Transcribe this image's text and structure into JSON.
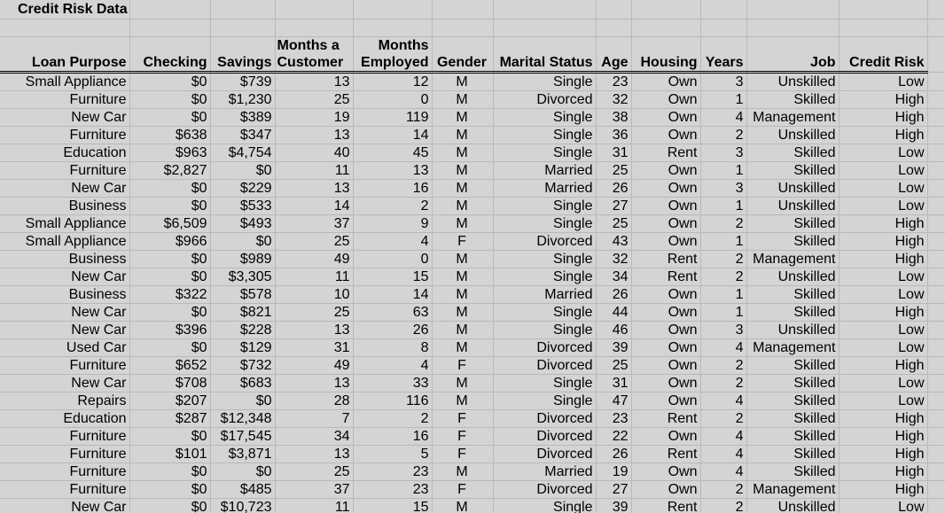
{
  "title": "Credit Risk Data",
  "table": {
    "header": [
      "Loan Purpose",
      "Checking",
      "Savings",
      "Months a Customer",
      "Months Employed",
      "Gender",
      "Marital Status",
      "Age",
      "Housing",
      "Years",
      "Job",
      "Credit Risk"
    ],
    "rows": [
      [
        "Small Appliance",
        "$0",
        "$739",
        "13",
        "12",
        "M",
        "Single",
        "23",
        "Own",
        "3",
        "Unskilled",
        "Low"
      ],
      [
        "Furniture",
        "$0",
        "$1,230",
        "25",
        "0",
        "M",
        "Divorced",
        "32",
        "Own",
        "1",
        "Skilled",
        "High"
      ],
      [
        "New Car",
        "$0",
        "$389",
        "19",
        "119",
        "M",
        "Single",
        "38",
        "Own",
        "4",
        "Management",
        "High"
      ],
      [
        "Furniture",
        "$638",
        "$347",
        "13",
        "14",
        "M",
        "Single",
        "36",
        "Own",
        "2",
        "Unskilled",
        "High"
      ],
      [
        "Education",
        "$963",
        "$4,754",
        "40",
        "45",
        "M",
        "Single",
        "31",
        "Rent",
        "3",
        "Skilled",
        "Low"
      ],
      [
        "Furniture",
        "$2,827",
        "$0",
        "11",
        "13",
        "M",
        "Married",
        "25",
        "Own",
        "1",
        "Skilled",
        "Low"
      ],
      [
        "New Car",
        "$0",
        "$229",
        "13",
        "16",
        "M",
        "Married",
        "26",
        "Own",
        "3",
        "Unskilled",
        "Low"
      ],
      [
        "Business",
        "$0",
        "$533",
        "14",
        "2",
        "M",
        "Single",
        "27",
        "Own",
        "1",
        "Unskilled",
        "Low"
      ],
      [
        "Small Appliance",
        "$6,509",
        "$493",
        "37",
        "9",
        "M",
        "Single",
        "25",
        "Own",
        "2",
        "Skilled",
        "High"
      ],
      [
        "Small Appliance",
        "$966",
        "$0",
        "25",
        "4",
        "F",
        "Divorced",
        "43",
        "Own",
        "1",
        "Skilled",
        "High"
      ],
      [
        "Business",
        "$0",
        "$989",
        "49",
        "0",
        "M",
        "Single",
        "32",
        "Rent",
        "2",
        "Management",
        "High"
      ],
      [
        "New Car",
        "$0",
        "$3,305",
        "11",
        "15",
        "M",
        "Single",
        "34",
        "Rent",
        "2",
        "Unskilled",
        "Low"
      ],
      [
        "Business",
        "$322",
        "$578",
        "10",
        "14",
        "M",
        "Married",
        "26",
        "Own",
        "1",
        "Skilled",
        "Low"
      ],
      [
        "New Car",
        "$0",
        "$821",
        "25",
        "63",
        "M",
        "Single",
        "44",
        "Own",
        "1",
        "Skilled",
        "High"
      ],
      [
        "New Car",
        "$396",
        "$228",
        "13",
        "26",
        "M",
        "Single",
        "46",
        "Own",
        "3",
        "Unskilled",
        "Low"
      ],
      [
        "Used Car",
        "$0",
        "$129",
        "31",
        "8",
        "M",
        "Divorced",
        "39",
        "Own",
        "4",
        "Management",
        "Low"
      ],
      [
        "Furniture",
        "$652",
        "$732",
        "49",
        "4",
        "F",
        "Divorced",
        "25",
        "Own",
        "2",
        "Skilled",
        "High"
      ],
      [
        "New Car",
        "$708",
        "$683",
        "13",
        "33",
        "M",
        "Single",
        "31",
        "Own",
        "2",
        "Skilled",
        "Low"
      ],
      [
        "Repairs",
        "$207",
        "$0",
        "28",
        "116",
        "M",
        "Single",
        "47",
        "Own",
        "4",
        "Skilled",
        "Low"
      ],
      [
        "Education",
        "$287",
        "$12,348",
        "7",
        "2",
        "F",
        "Divorced",
        "23",
        "Rent",
        "2",
        "Skilled",
        "High"
      ],
      [
        "Furniture",
        "$0",
        "$17,545",
        "34",
        "16",
        "F",
        "Divorced",
        "22",
        "Own",
        "4",
        "Skilled",
        "High"
      ],
      [
        "Furniture",
        "$101",
        "$3,871",
        "13",
        "5",
        "F",
        "Divorced",
        "26",
        "Rent",
        "4",
        "Skilled",
        "High"
      ],
      [
        "Furniture",
        "$0",
        "$0",
        "25",
        "23",
        "M",
        "Married",
        "19",
        "Own",
        "4",
        "Skilled",
        "High"
      ],
      [
        "Furniture",
        "$0",
        "$485",
        "37",
        "23",
        "F",
        "Divorced",
        "27",
        "Own",
        "2",
        "Management",
        "High"
      ],
      [
        "New Car",
        "$0",
        "$10,723",
        "11",
        "15",
        "M",
        "Single",
        "39",
        "Rent",
        "2",
        "Unskilled",
        "Low"
      ]
    ]
  }
}
